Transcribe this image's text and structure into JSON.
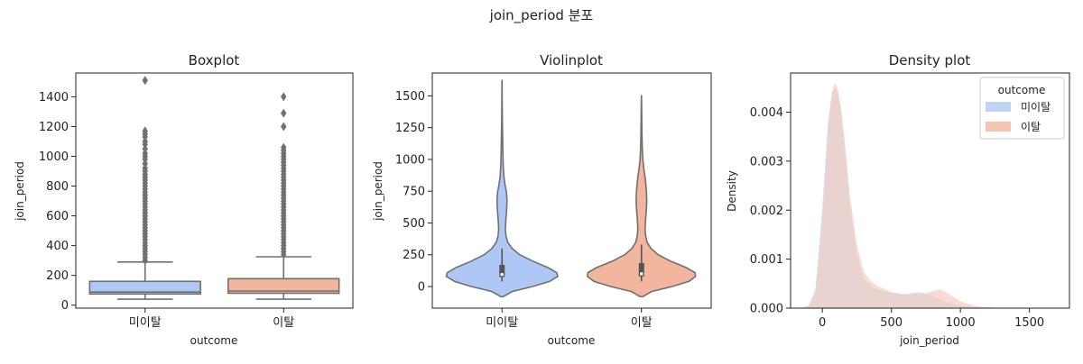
{
  "figure": {
    "suptitle": "join_period 분포"
  },
  "colors": {
    "non_churn": "#aec7f5",
    "churn": "#f2b59e",
    "edge": "#707070",
    "non_churn_density": "#bfd3f5",
    "churn_density": "#f4c5b2"
  },
  "chart_data": [
    {
      "type": "boxplot",
      "title": "Boxplot",
      "xlabel": "outcome",
      "ylabel": "join_period",
      "categories": [
        "미이탈",
        "이탈"
      ],
      "ylim": [
        -20,
        1560
      ],
      "yticks": [
        0,
        200,
        400,
        600,
        800,
        1000,
        1200,
        1400
      ],
      "boxes": [
        {
          "name": "미이탈",
          "whislo": 40,
          "q1": 75,
          "med": 88,
          "q3": 160,
          "whishi": 290,
          "fliers": [
            300,
            320,
            340,
            360,
            380,
            400,
            420,
            440,
            460,
            480,
            500,
            520,
            540,
            560,
            580,
            600,
            620,
            640,
            660,
            680,
            700,
            720,
            740,
            760,
            780,
            800,
            820,
            840,
            860,
            880,
            900,
            920,
            950,
            980,
            1000,
            1020,
            1050,
            1080,
            1100,
            1130,
            1150,
            1170,
            1510
          ]
        },
        {
          "name": "이탈",
          "whislo": 40,
          "q1": 80,
          "med": 95,
          "q3": 178,
          "whishi": 325,
          "fliers": [
            340,
            360,
            380,
            400,
            420,
            440,
            460,
            480,
            500,
            520,
            540,
            560,
            580,
            600,
            620,
            640,
            660,
            680,
            700,
            720,
            740,
            760,
            780,
            800,
            820,
            840,
            860,
            880,
            900,
            920,
            940,
            960,
            980,
            1000,
            1020,
            1040,
            1060,
            1200,
            1290,
            1400
          ]
        }
      ]
    },
    {
      "type": "violin",
      "title": "Violinplot",
      "xlabel": "outcome",
      "ylabel": "join_period",
      "categories": [
        "미이탈",
        "이탈"
      ],
      "ylim": [
        -170,
        1680
      ],
      "yticks": [
        0,
        250,
        500,
        750,
        1000,
        1250,
        1500
      ],
      "violins": [
        {
          "name": "미이탈",
          "min": -80,
          "max": 1620,
          "q1": 75,
          "med": 95,
          "q3": 170,
          "whislo": 40,
          "whishi": 300,
          "profile": [
            [
              -80,
              0.02
            ],
            [
              -40,
              0.18
            ],
            [
              0,
              0.55
            ],
            [
              40,
              0.85
            ],
            [
              80,
              1.0
            ],
            [
              110,
              0.98
            ],
            [
              150,
              0.82
            ],
            [
              200,
              0.55
            ],
            [
              250,
              0.32
            ],
            [
              300,
              0.18
            ],
            [
              350,
              0.1
            ],
            [
              400,
              0.07
            ],
            [
              450,
              0.06
            ],
            [
              500,
              0.065
            ],
            [
              560,
              0.075
            ],
            [
              620,
              0.085
            ],
            [
              680,
              0.09
            ],
            [
              740,
              0.08
            ],
            [
              800,
              0.055
            ],
            [
              860,
              0.035
            ],
            [
              950,
              0.022
            ],
            [
              1050,
              0.016
            ],
            [
              1150,
              0.012
            ],
            [
              1300,
              0.006
            ],
            [
              1450,
              0.003
            ],
            [
              1620,
              0.001
            ]
          ]
        },
        {
          "name": "이탈",
          "min": -80,
          "max": 1500,
          "q1": 80,
          "med": 100,
          "q3": 185,
          "whislo": 40,
          "whishi": 330,
          "profile": [
            [
              -80,
              0.02
            ],
            [
              -40,
              0.18
            ],
            [
              0,
              0.55
            ],
            [
              40,
              0.85
            ],
            [
              80,
              0.97
            ],
            [
              110,
              0.96
            ],
            [
              150,
              0.8
            ],
            [
              200,
              0.52
            ],
            [
              250,
              0.3
            ],
            [
              300,
              0.17
            ],
            [
              350,
              0.1
            ],
            [
              400,
              0.075
            ],
            [
              450,
              0.065
            ],
            [
              500,
              0.07
            ],
            [
              560,
              0.08
            ],
            [
              620,
              0.09
            ],
            [
              680,
              0.095
            ],
            [
              740,
              0.09
            ],
            [
              800,
              0.08
            ],
            [
              860,
              0.065
            ],
            [
              920,
              0.045
            ],
            [
              1000,
              0.025
            ],
            [
              1100,
              0.014
            ],
            [
              1200,
              0.009
            ],
            [
              1350,
              0.005
            ],
            [
              1500,
              0.001
            ]
          ]
        }
      ]
    },
    {
      "type": "area",
      "title": "Density plot",
      "xlabel": "join_period",
      "ylabel": "Density",
      "xlim": [
        -230,
        1790
      ],
      "ylim": [
        0,
        0.0048
      ],
      "xticks": [
        0,
        500,
        1000,
        1500
      ],
      "yticks": [
        0.0,
        0.001,
        0.002,
        0.003,
        0.004
      ],
      "legend": {
        "title": "outcome",
        "position": "top-right"
      },
      "series": [
        {
          "name": "미이탈",
          "x": [
            -150,
            -100,
            -50,
            0,
            40,
            70,
            90,
            110,
            130,
            160,
            200,
            250,
            300,
            350,
            400,
            500,
            600,
            650,
            700,
            750,
            800,
            900,
            1000,
            1100,
            1200,
            1300
          ],
          "y": [
            1e-05,
            5e-05,
            0.0004,
            0.0021,
            0.0038,
            0.0044,
            0.0045,
            0.0044,
            0.0041,
            0.0033,
            0.0021,
            0.0011,
            0.0006,
            0.00045,
            0.00038,
            0.00031,
            0.00028,
            0.00031,
            0.00033,
            0.0003,
            0.00025,
            0.00012,
            6e-05,
            2e-05,
            1e-05,
            0.0
          ]
        },
        {
          "name": "이탈",
          "x": [
            -150,
            -100,
            -50,
            0,
            40,
            70,
            90,
            110,
            130,
            160,
            200,
            250,
            300,
            350,
            400,
            500,
            600,
            650,
            700,
            750,
            800,
            850,
            900,
            1000,
            1100,
            1200,
            1300
          ],
          "y": [
            1e-05,
            4e-05,
            0.0003,
            0.0018,
            0.0036,
            0.0044,
            0.0046,
            0.0045,
            0.0042,
            0.0035,
            0.0023,
            0.0013,
            0.00075,
            0.00055,
            0.00045,
            0.00033,
            0.00028,
            0.0003,
            0.00029,
            0.0003,
            0.00035,
            0.00038,
            0.00032,
            0.00014,
            5e-05,
            2e-05,
            0.0
          ]
        }
      ]
    }
  ]
}
